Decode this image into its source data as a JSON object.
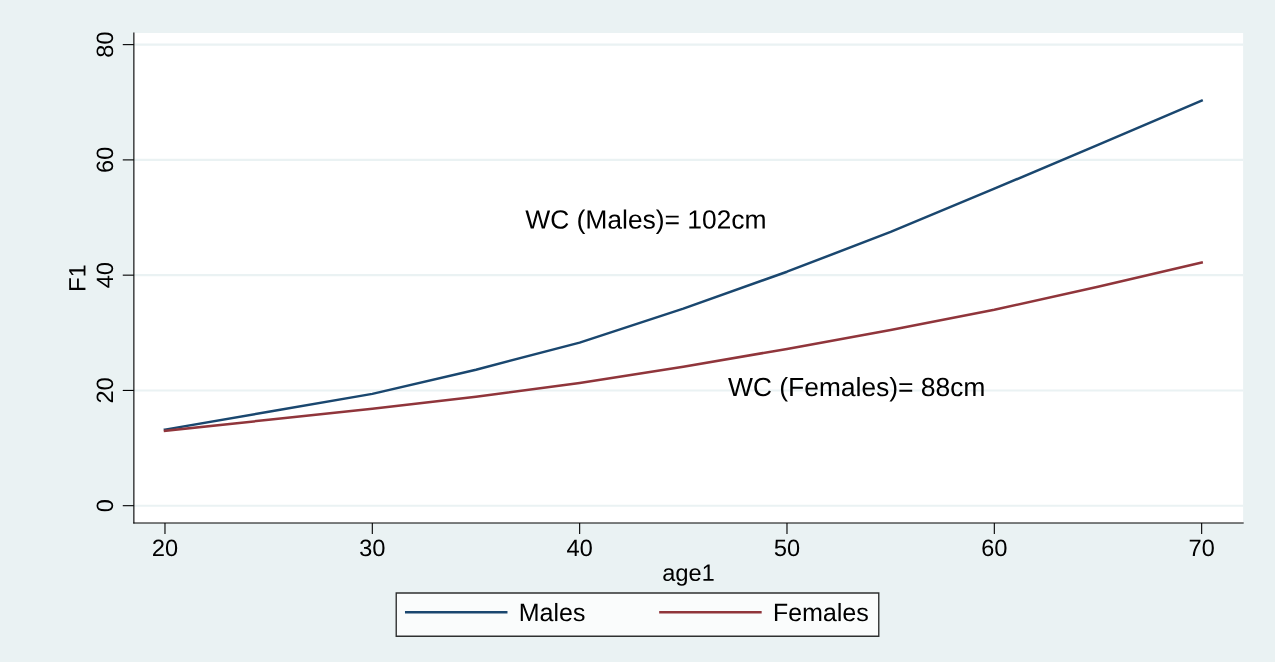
{
  "chart_data": {
    "type": "line",
    "xlabel": "age1",
    "ylabel": "F1",
    "x": [
      20,
      25,
      30,
      35,
      40,
      45,
      50,
      55,
      60,
      65,
      70
    ],
    "series": [
      {
        "name": "Males",
        "color": "#1a476f",
        "values": [
          13.2,
          16.3,
          19.4,
          23.6,
          28.3,
          34.2,
          40.6,
          47.5,
          55,
          62.6,
          70.3
        ]
      },
      {
        "name": "Females",
        "color": "#90353b",
        "values": [
          13.0,
          14.9,
          16.8,
          18.9,
          21.3,
          24.1,
          27.2,
          30.5,
          34.0,
          38.0,
          42.2
        ]
      }
    ],
    "annotations": [
      "WC (Males)= 102cm",
      "WC (Females)= 88cm"
    ],
    "xlim": [
      18.5,
      72
    ],
    "ylim": [
      -3,
      82
    ],
    "xticks": [
      20,
      30,
      40,
      50,
      60,
      70
    ],
    "yticks": [
      0,
      20,
      40,
      60,
      80
    ],
    "grid": "y",
    "legend": "bottom",
    "line_style": "solid",
    "marker": "none"
  }
}
